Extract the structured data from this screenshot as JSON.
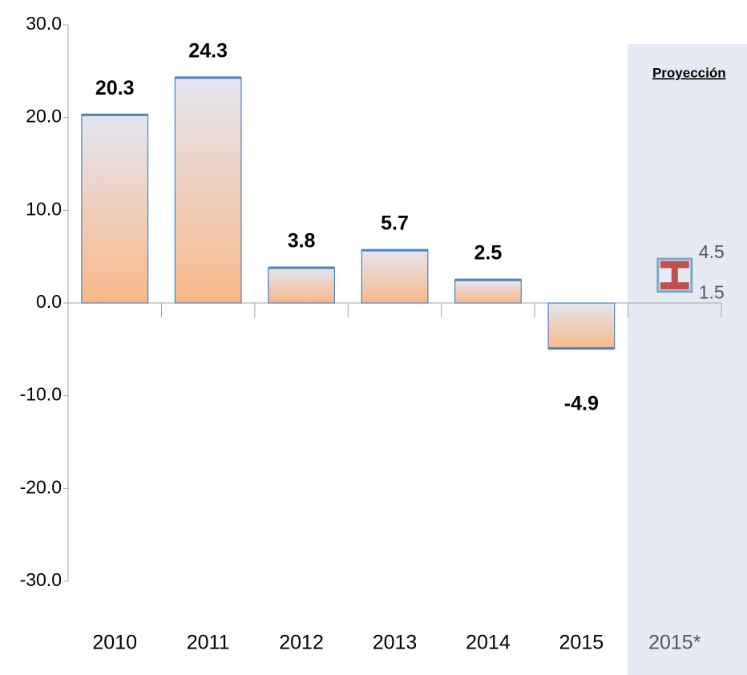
{
  "chart_data": {
    "type": "bar",
    "categories": [
      "2010",
      "2011",
      "2012",
      "2013",
      "2014",
      "2015",
      "2015*"
    ],
    "values": [
      20.3,
      24.3,
      3.8,
      5.7,
      2.5,
      -4.9,
      null
    ],
    "color": "#4f81bd",
    "ylim": [
      -30,
      30
    ],
    "yticks": [
      {
        "value": -30,
        "label": "-30.0"
      },
      {
        "value": -20,
        "label": "-20.0"
      },
      {
        "value": -10,
        "label": "-10.0"
      },
      {
        "value": 0,
        "label": "0.0"
      },
      {
        "value": 10,
        "label": "10.0"
      },
      {
        "value": 20,
        "label": "20.0"
      },
      {
        "value": 30,
        "label": "30.0"
      }
    ],
    "projection": {
      "title": "Proyección",
      "low": 1.5,
      "high": 4.5,
      "color": "#c0504d"
    }
  }
}
